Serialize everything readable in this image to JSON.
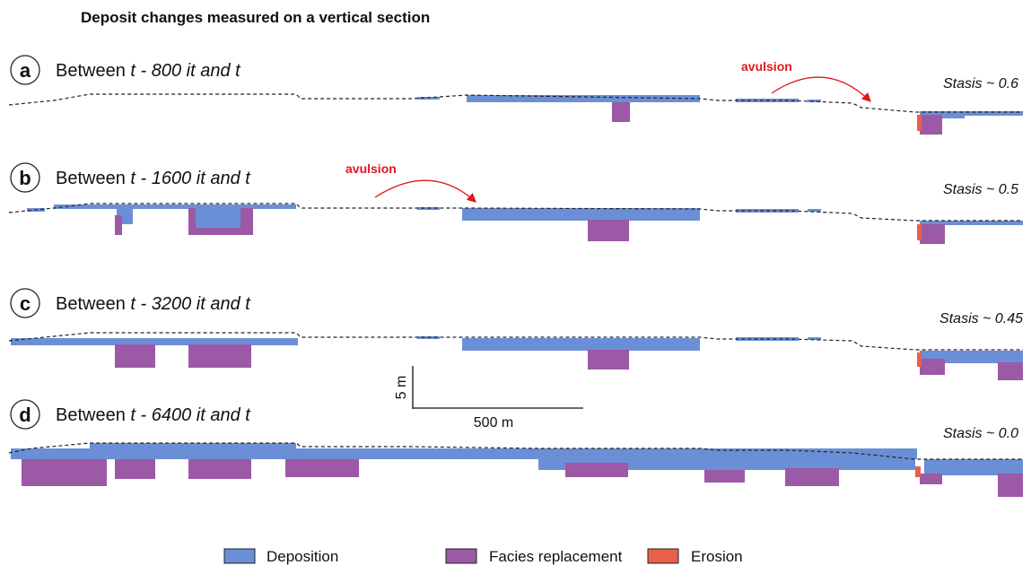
{
  "title": "Deposit changes measured on a vertical section",
  "panels": [
    {
      "label": "a",
      "prefix": "Between",
      "interval": "t - 800 it and t",
      "stasis": "Stasis ~ 0.6",
      "annotation": "avulsion"
    },
    {
      "label": "b",
      "prefix": "Between",
      "interval": "t - 1600 it and t",
      "stasis": "Stasis ~ 0.5",
      "annotation": "avulsion"
    },
    {
      "label": "c",
      "prefix": "Between",
      "interval": "t - 3200 it and t",
      "stasis": "Stasis ~ 0.45"
    },
    {
      "label": "d",
      "prefix": "Between",
      "interval": "t - 6400 it and t",
      "stasis": "Stasis ~ 0.0"
    }
  ],
  "scale_bar": {
    "vertical": "5 m",
    "horizontal": "500 m"
  },
  "legend": [
    "Deposition",
    "Facies replacement",
    "Erosion"
  ]
}
